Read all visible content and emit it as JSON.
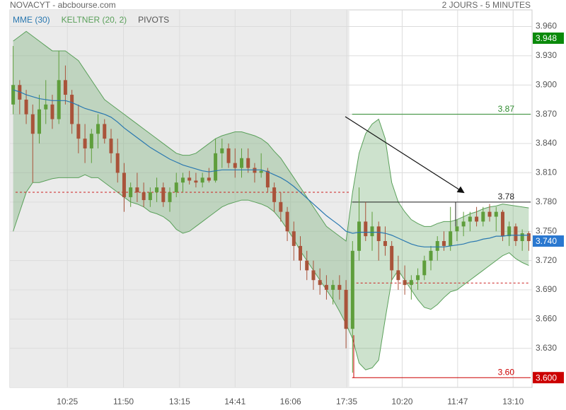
{
  "chart_data": {
    "type": "candlestick",
    "title": "NOVACYT - abcbourse.com",
    "subtitle": "2 JOURS - 5 MINUTES",
    "indicators": [
      {
        "name": "MME (30)",
        "color": "#2a78b0"
      },
      {
        "name": "KELTNER (20, 2)",
        "color": "#5aa05a"
      },
      {
        "name": "PIVOTS",
        "color": "#555555"
      }
    ],
    "up_color": "#5f9e3c",
    "down_color": "#a9533a",
    "xlim": [
      -0.5,
      79.5
    ],
    "xticks": [
      {
        "value": 8.3,
        "label": "10:25"
      },
      {
        "value": 16.9,
        "label": "11:50"
      },
      {
        "value": 25.5,
        "label": "13:15"
      },
      {
        "value": 34.0,
        "label": "14:41"
      },
      {
        "value": 42.5,
        "label": "16:06"
      },
      {
        "value": 51.1,
        "label": "17:35"
      },
      {
        "value": 59.6,
        "label": "10:20"
      },
      {
        "value": 68.1,
        "label": "11:47"
      },
      {
        "value": 76.6,
        "label": "13:10"
      }
    ],
    "ylim": [
      3.59,
      3.977
    ],
    "yticks": [
      {
        "value": 3.63,
        "label": "3.630"
      },
      {
        "value": 3.66,
        "label": "3.660"
      },
      {
        "value": 3.69,
        "label": "3.690"
      },
      {
        "value": 3.72,
        "label": "3.720"
      },
      {
        "value": 3.75,
        "label": "3.750"
      },
      {
        "value": 3.78,
        "label": "3.780"
      },
      {
        "value": 3.81,
        "label": "3.810"
      },
      {
        "value": 3.84,
        "label": "3.840"
      },
      {
        "value": 3.87,
        "label": "3.870"
      },
      {
        "value": 3.9,
        "label": "3.900"
      },
      {
        "value": 3.93,
        "label": "3.930"
      },
      {
        "value": 3.96,
        "label": "3.960"
      }
    ],
    "grid": true,
    "candles": [
      [
        3.88,
        3.94,
        3.87,
        3.9
      ],
      [
        3.9,
        3.905,
        3.87,
        3.885
      ],
      [
        3.885,
        3.895,
        3.86,
        3.87
      ],
      [
        3.87,
        3.88,
        3.8,
        3.85
      ],
      [
        3.85,
        3.89,
        3.84,
        3.875
      ],
      [
        3.875,
        3.905,
        3.86,
        3.88
      ],
      [
        3.88,
        3.89,
        3.855,
        3.865
      ],
      [
        3.865,
        3.935,
        3.86,
        3.905
      ],
      [
        3.905,
        3.92,
        3.88,
        3.89
      ],
      [
        3.89,
        3.895,
        3.85,
        3.86
      ],
      [
        3.86,
        3.88,
        3.83,
        3.845
      ],
      [
        3.845,
        3.86,
        3.82,
        3.835
      ],
      [
        3.835,
        3.855,
        3.82,
        3.85
      ],
      [
        3.85,
        3.87,
        3.835,
        3.86
      ],
      [
        3.86,
        3.865,
        3.84,
        3.845
      ],
      [
        3.845,
        3.855,
        3.82,
        3.83
      ],
      [
        3.83,
        3.845,
        3.8,
        3.81
      ],
      [
        3.81,
        3.82,
        3.77,
        3.785
      ],
      [
        3.785,
        3.8,
        3.775,
        3.795
      ],
      [
        3.795,
        3.81,
        3.78,
        3.79
      ],
      [
        3.79,
        3.8,
        3.775,
        3.782
      ],
      [
        3.782,
        3.795,
        3.775,
        3.79
      ],
      [
        3.79,
        3.805,
        3.78,
        3.795
      ],
      [
        3.795,
        3.8,
        3.775,
        3.78
      ],
      [
        3.78,
        3.795,
        3.77,
        3.79
      ],
      [
        3.79,
        3.81,
        3.785,
        3.8
      ],
      [
        3.8,
        3.81,
        3.79,
        3.805
      ],
      [
        3.805,
        3.812,
        3.798,
        3.802
      ],
      [
        3.802,
        3.81,
        3.795,
        3.8
      ],
      [
        3.8,
        3.81,
        3.795,
        3.805
      ],
      [
        3.805,
        3.815,
        3.8,
        3.802
      ],
      [
        3.802,
        3.845,
        3.8,
        3.83
      ],
      [
        3.83,
        3.845,
        3.815,
        3.835
      ],
      [
        3.835,
        3.84,
        3.815,
        3.82
      ],
      [
        3.82,
        3.835,
        3.805,
        3.815
      ],
      [
        3.815,
        3.835,
        3.805,
        3.825
      ],
      [
        3.825,
        3.835,
        3.81,
        3.815
      ],
      [
        3.815,
        3.82,
        3.8,
        3.81
      ],
      [
        3.81,
        3.83,
        3.805,
        3.812
      ],
      [
        3.812,
        3.815,
        3.79,
        3.795
      ],
      [
        3.795,
        3.8,
        3.77,
        3.78
      ],
      [
        3.78,
        3.79,
        3.76,
        3.77
      ],
      [
        3.77,
        3.775,
        3.74,
        3.75
      ],
      [
        3.75,
        3.76,
        3.72,
        3.735
      ],
      [
        3.735,
        3.745,
        3.71,
        3.72
      ],
      [
        3.72,
        3.73,
        3.7,
        3.71
      ],
      [
        3.71,
        3.72,
        3.69,
        3.7
      ],
      [
        3.7,
        3.712,
        3.685,
        3.695
      ],
      [
        3.695,
        3.705,
        3.68,
        3.69
      ],
      [
        3.69,
        3.7,
        3.675,
        3.695
      ],
      [
        3.695,
        3.705,
        3.68,
        3.69
      ],
      [
        3.69,
        3.7,
        3.63,
        3.65
      ],
      [
        3.65,
        3.74,
        3.605,
        3.73
      ],
      [
        3.73,
        3.795,
        3.72,
        3.76
      ],
      [
        3.76,
        3.78,
        3.74,
        3.745
      ],
      [
        3.745,
        3.77,
        3.73,
        3.755
      ],
      [
        3.755,
        3.76,
        3.72,
        3.74
      ],
      [
        3.74,
        3.755,
        3.725,
        3.735
      ],
      [
        3.735,
        3.74,
        3.7,
        3.71
      ],
      [
        3.71,
        3.725,
        3.69,
        3.7
      ],
      [
        3.7,
        3.715,
        3.685,
        3.695
      ],
      [
        3.695,
        3.705,
        3.68,
        3.7
      ],
      [
        3.7,
        3.712,
        3.69,
        3.705
      ],
      [
        3.705,
        3.725,
        3.7,
        3.72
      ],
      [
        3.72,
        3.735,
        3.71,
        3.73
      ],
      [
        3.73,
        3.745,
        3.72,
        3.74
      ],
      [
        3.74,
        3.75,
        3.73,
        3.735
      ],
      [
        3.735,
        3.775,
        3.73,
        3.75
      ],
      [
        3.75,
        3.762,
        3.74,
        3.755
      ],
      [
        3.755,
        3.77,
        3.745,
        3.76
      ],
      [
        3.76,
        3.77,
        3.75,
        3.765
      ],
      [
        3.765,
        3.775,
        3.755,
        3.76
      ],
      [
        3.76,
        3.775,
        3.755,
        3.77
      ],
      [
        3.77,
        3.778,
        3.76,
        3.765
      ],
      [
        3.765,
        3.775,
        3.75,
        3.77
      ],
      [
        3.77,
        3.772,
        3.74,
        3.745
      ],
      [
        3.745,
        3.76,
        3.735,
        3.755
      ],
      [
        3.755,
        3.758,
        3.735,
        3.74
      ],
      [
        3.74,
        3.752,
        3.73,
        3.748
      ],
      [
        3.748,
        3.75,
        3.73,
        3.74
      ]
    ],
    "mme": [
      3.895,
      3.893,
      3.89,
      3.888,
      3.886,
      3.885,
      3.884,
      3.884,
      3.884,
      3.882,
      3.879,
      3.876,
      3.874,
      3.872,
      3.87,
      3.867,
      3.862,
      3.856,
      3.851,
      3.846,
      3.841,
      3.836,
      3.832,
      3.828,
      3.824,
      3.821,
      3.818,
      3.816,
      3.814,
      3.812,
      3.811,
      3.812,
      3.813,
      3.813,
      3.813,
      3.813,
      3.813,
      3.813,
      3.813,
      3.811,
      3.808,
      3.805,
      3.801,
      3.796,
      3.79,
      3.784,
      3.778,
      3.772,
      3.766,
      3.761,
      3.756,
      3.75,
      3.748,
      3.749,
      3.749,
      3.749,
      3.749,
      3.748,
      3.746,
      3.743,
      3.74,
      3.737,
      3.735,
      3.734,
      3.734,
      3.734,
      3.734,
      3.735,
      3.736,
      3.737,
      3.739,
      3.74,
      3.742,
      3.743,
      3.745,
      3.745,
      3.746,
      3.746,
      3.746,
      3.746
    ],
    "keltner_upper": [
      3.945,
      3.95,
      3.955,
      3.95,
      3.945,
      3.94,
      3.935,
      3.935,
      3.935,
      3.93,
      3.925,
      3.915,
      3.905,
      3.895,
      3.885,
      3.88,
      3.875,
      3.87,
      3.865,
      3.86,
      3.855,
      3.85,
      3.845,
      3.84,
      3.835,
      3.83,
      3.828,
      3.828,
      3.83,
      3.835,
      3.84,
      3.845,
      3.848,
      3.85,
      3.852,
      3.852,
      3.85,
      3.848,
      3.845,
      3.84,
      3.832,
      3.825,
      3.815,
      3.805,
      3.795,
      3.785,
      3.775,
      3.765,
      3.755,
      3.75,
      3.745,
      3.74,
      3.79,
      3.83,
      3.85,
      3.86,
      3.865,
      3.845,
      3.8,
      3.78,
      3.77,
      3.762,
      3.758,
      3.755,
      3.755,
      3.758,
      3.76,
      3.76,
      3.762,
      3.765,
      3.768,
      3.77,
      3.773,
      3.775,
      3.776,
      3.778,
      3.777,
      3.776,
      3.775,
      3.774
    ],
    "keltner_lower": [
      3.75,
      3.77,
      3.79,
      3.8,
      3.8,
      3.802,
      3.804,
      3.805,
      3.805,
      3.805,
      3.805,
      3.808,
      3.805,
      3.805,
      3.8,
      3.795,
      3.79,
      3.785,
      3.78,
      3.778,
      3.775,
      3.77,
      3.768,
      3.765,
      3.76,
      3.752,
      3.748,
      3.75,
      3.755,
      3.76,
      3.765,
      3.77,
      3.775,
      3.778,
      3.78,
      3.782,
      3.782,
      3.78,
      3.778,
      3.775,
      3.77,
      3.762,
      3.752,
      3.742,
      3.73,
      3.72,
      3.71,
      3.7,
      3.69,
      3.68,
      3.668,
      3.655,
      3.64,
      3.615,
      3.608,
      3.61,
      3.618,
      3.66,
      3.7,
      3.71,
      3.7,
      3.69,
      3.68,
      3.672,
      3.67,
      3.675,
      3.682,
      3.688,
      3.69,
      3.695,
      3.7,
      3.705,
      3.71,
      3.715,
      3.72,
      3.725,
      3.728,
      3.722,
      3.718,
      3.715
    ],
    "pivots": [
      3.79,
      3.697
    ],
    "levels": [
      {
        "value": 3.87,
        "color": "#2e8b2e"
      },
      {
        "value": 3.78,
        "color": "#222222"
      },
      {
        "value": 3.6,
        "label": "3.60",
        "color": "#cc0000"
      }
    ],
    "badges": [
      {
        "value": 3.948,
        "color": "#0b8a0b"
      },
      {
        "value": 3.74,
        "label": "3.740",
        "color": "#2a78d0"
      },
      {
        "value": 3.6,
        "label": "3.600",
        "color": "#cc0000"
      }
    ]
  }
}
